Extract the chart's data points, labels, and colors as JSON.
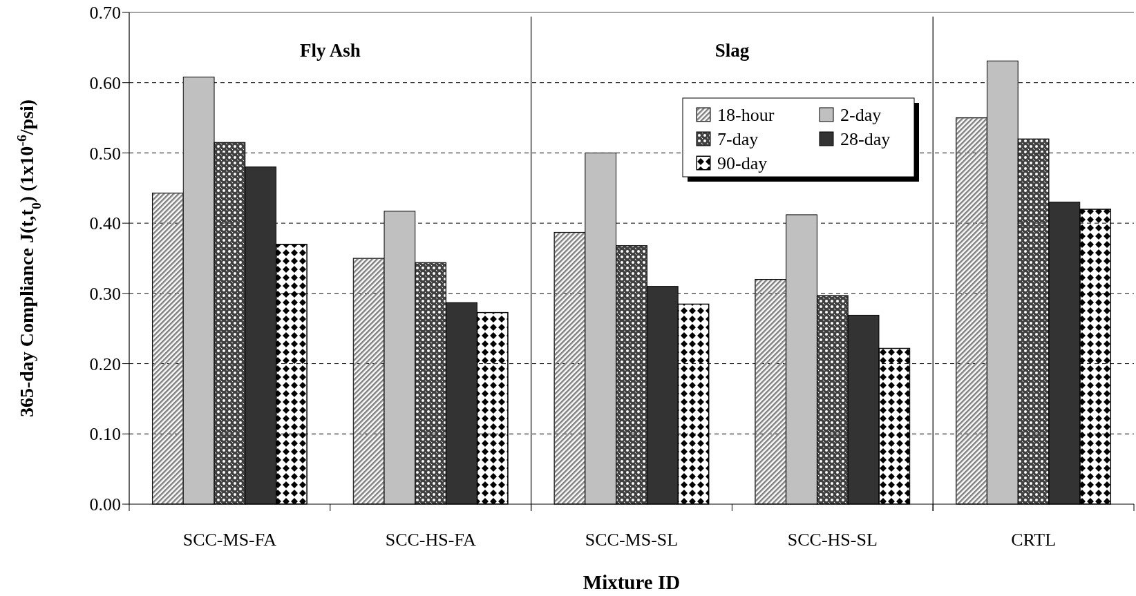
{
  "chart_data": {
    "type": "bar",
    "xlabel": "Mixture ID",
    "ylabel": "365-day Compliance J(t,t$_{0}$)  (1x10$^{-6}$/psi)",
    "categories": [
      "SCC-MS-FA",
      "SCC-HS-FA",
      "SCC-MS-SL",
      "SCC-HS-SL",
      "CRTL"
    ],
    "series": [
      {
        "name": "18-hour",
        "color": "#808080",
        "values": [
          0.443,
          0.35,
          0.387,
          0.32,
          0.55
        ]
      },
      {
        "name": "2-day",
        "color": "#c0c0c0",
        "values": [
          0.608,
          0.417,
          0.5,
          0.412,
          0.631
        ]
      },
      {
        "name": "7-day",
        "color": "#404040",
        "values": [
          0.515,
          0.344,
          0.368,
          0.297,
          0.52
        ]
      },
      {
        "name": "28-day",
        "color": "#333333",
        "values": [
          0.48,
          0.287,
          0.31,
          0.269,
          0.43
        ]
      },
      {
        "name": "90-day",
        "color": "#000000",
        "values": [
          0.37,
          0.273,
          0.285,
          0.222,
          0.42
        ]
      }
    ],
    "ylim": [
      0,
      0.7
    ],
    "yticks": [
      {
        "value": 0,
        "label": "0.00"
      },
      {
        "value": 0.1,
        "label": "0.10"
      },
      {
        "value": 0.2,
        "label": "0.20"
      },
      {
        "value": 0.3,
        "label": "0.30"
      },
      {
        "value": 0.4,
        "label": "0.40"
      },
      {
        "value": 0.5,
        "label": "0.50"
      },
      {
        "value": 0.6,
        "label": "0.60"
      },
      {
        "value": 0.7,
        "label": "0.70"
      }
    ],
    "grid": "y",
    "legend": "top right",
    "annotations": [
      "Fly Ash",
      "Slag"
    ]
  }
}
